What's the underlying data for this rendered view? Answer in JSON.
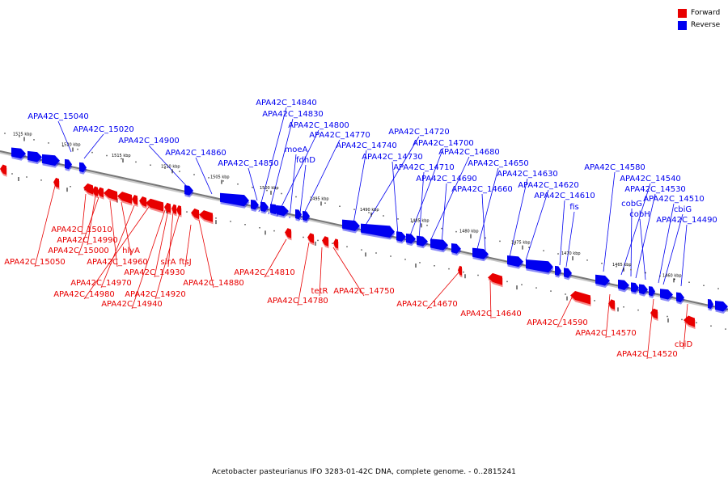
{
  "legend": [
    {
      "label": "Forward",
      "color": "#e80000"
    },
    {
      "label": "Reverse",
      "color": "#0000f0"
    }
  ],
  "caption": "Acetobacter pasteurianus IFO 3283-01-42C DNA, complete genome. - 0..2815241",
  "colors": {
    "forward": "#e80000",
    "reverse": "#0000f0",
    "backbone": "#777777"
  },
  "kbp_ticks": [
    "1525 kbp",
    "1520 kbp",
    "1515 kbp",
    "1510 kbp",
    "1505 kbp",
    "1500 kbp",
    "1495 kbp",
    "1490 kbp",
    "1485 kbp",
    "1480 kbp",
    "1475 kbp",
    "1470 kbp",
    "1465 kbp",
    "1460 kbp"
  ],
  "reverse_labels": [
    "APA42C_15040",
    "APA42C_15020",
    "APA42C_14900",
    "APA42C_14860",
    "APA42C_14850",
    "APA42C_14840",
    "APA42C_14830",
    "APA42C_14800",
    "moeA",
    "fdhD",
    "APA42C_14770",
    "APA42C_14740",
    "APA42C_14720",
    "APA42C_14730",
    "APA42C_14700",
    "APA42C_14710",
    "APA42C_14680",
    "APA42C_14690",
    "APA42C_14650",
    "APA42C_14660",
    "APA42C_14630",
    "APA42C_14620",
    "APA42C_14610",
    "fis",
    "APA42C_14580",
    "APA42C_14540",
    "cobG",
    "APA42C_14530",
    "cobH",
    "APA42C_14510",
    "cbiG",
    "APA42C_14490"
  ],
  "forward_labels": [
    "APA42C_15010",
    "APA42C_14990",
    "APA42C_15000",
    "APA42C_15050",
    "hlyA",
    "APA42C_14960",
    "APA42C_14970",
    "APA42C_14930",
    "sirA",
    "ftsJ",
    "APA42C_14980",
    "APA42C_14920",
    "APA42C_14940",
    "APA42C_14880",
    "APA42C_14810",
    "tetR",
    "APA42C_14780",
    "APA42C_14750",
    "APA42C_14670",
    "APA42C_14640",
    "APA42C_14590",
    "APA42C_14570",
    "APA42C_14520",
    "cbiD"
  ]
}
